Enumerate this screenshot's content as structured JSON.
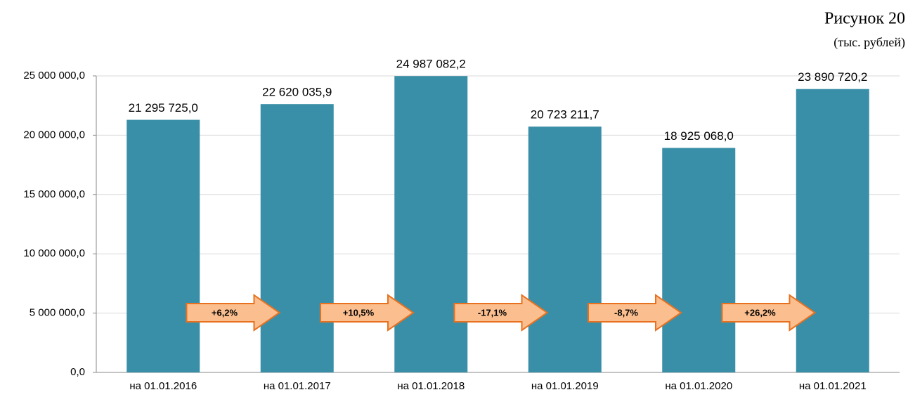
{
  "chart_data": {
    "type": "bar",
    "title": "Рисунок 20",
    "subtitle": "(тыс. рублей)",
    "categories": [
      "на 01.01.2016",
      "на 01.01.2017",
      "на 01.01.2018",
      "на 01.01.2019",
      "на 01.01.2020",
      "на 01.01.2021"
    ],
    "values": [
      21295725.0,
      22620035.9,
      24987082.2,
      20723211.7,
      18925068.0,
      23890720.2
    ],
    "value_labels": [
      "21 295 725,0",
      "22 620 035,9",
      "24 987 082,2",
      "20 723 211,7",
      "18 925 068,0",
      "23 890 720,2"
    ],
    "color": "#3a8fa8",
    "ylim": [
      0,
      25000000
    ],
    "yticks": [
      {
        "value": 0,
        "label": "0,0"
      },
      {
        "value": 5000000,
        "label": "5 000 000,0"
      },
      {
        "value": 10000000,
        "label": "10 000 000,0"
      },
      {
        "value": 15000000,
        "label": "15 000 000,0"
      },
      {
        "value": 20000000,
        "label": "20 000 000,0"
      },
      {
        "value": 25000000,
        "label": "25 000 000,0"
      }
    ],
    "grid": true,
    "annotations": [
      "+6,2%",
      "+10,5%",
      "-17,1%",
      "-8,7%",
      "+26,2%"
    ]
  }
}
